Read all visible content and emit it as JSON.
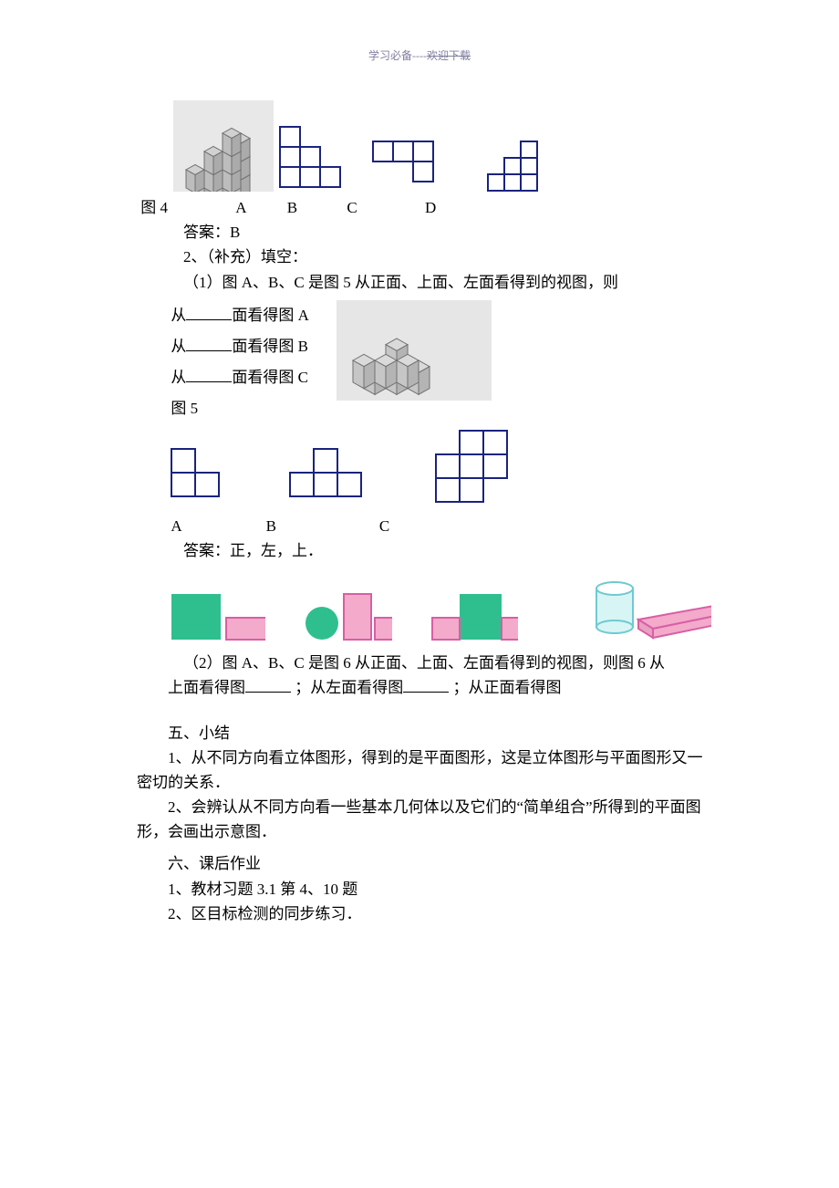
{
  "header": {
    "left": "学习必备----",
    "right": "欢迎下载"
  },
  "fig4": {
    "label_line": "图 4",
    "choices": [
      "A",
      "B",
      "C",
      "D"
    ],
    "answer_label": "答案：",
    "answer_value": "B",
    "cube_color": "#bdbdbd",
    "cube_edge": "#6f6f6f",
    "outline_color": "#1a237e",
    "cell": 22
  },
  "q2": {
    "intro": "2、（补充）填空：",
    "p1": "（1）图 A、B、C 是图 5 从正面、上面、左面看得到的视图，则",
    "line_a": "面看得图 A",
    "line_b": "面看得图 B",
    "line_c": "面看得图 C",
    "从": "从",
    "fig5_label": "图 5",
    "choices": [
      "A",
      "B",
      "C"
    ],
    "answer_label": "答案：",
    "answer_value": "正，左，上．",
    "p2a": "（2）图 A、B、C 是图 6 从正面、上面、左面看得到的视图，则图 6 从",
    "p2b_1": "上面看得图",
    "p2b_2": "；从左面看得图",
    "p2b_3": "；从正面看得图",
    "fig5_cube_fill": "#c6c6c6",
    "fig5_cube_edge": "#707070",
    "outline_color": "#1a237e",
    "cell": 26
  },
  "shapes": {
    "green": "#2fbf8f",
    "pink_fill": "#f3aacb",
    "pink_edge": "#d85fa4",
    "cyl_fill": "#d8f5f5",
    "cyl_edge": "#6fcad0"
  },
  "sec5": {
    "title": "五、小结",
    "p1": "1、从不同方向看立体图形，得到的是平面图形，这是立体图形与平面图形又一密切的关系．",
    "p2": "2、会辨认从不同方向看一些基本几何体以及它们的“简单组合”所得到的平面图形，会画出示意图．"
  },
  "sec6": {
    "title": "六、课后作业",
    "p1": "1、教材习题 3.1  第 4、10 题",
    "p2": "2、区目标检测的同步练习．"
  }
}
